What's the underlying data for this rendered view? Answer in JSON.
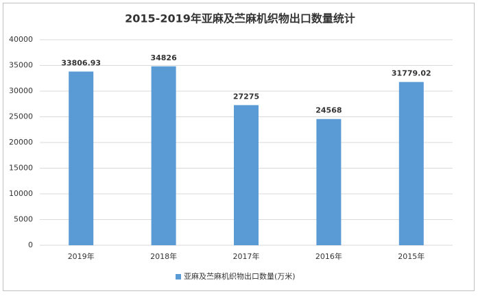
{
  "chart_data": {
    "type": "bar",
    "title": "2015-2019年亚麻及苎麻机织物出口数量统计",
    "categories": [
      "2019年",
      "2018年",
      "2017年",
      "2016年",
      "2015年"
    ],
    "series": [
      {
        "name": "亚麻及苎麻机织物出口数量(万米)",
        "color": "#5b9bd5",
        "values": [
          33806.93,
          34826,
          27275,
          24568,
          31779.02
        ]
      }
    ],
    "ylim": [
      0,
      40000
    ],
    "yticks": [
      0,
      5000,
      10000,
      15000,
      20000,
      25000,
      30000,
      35000,
      40000
    ],
    "grid": true,
    "legend": "bottom"
  }
}
